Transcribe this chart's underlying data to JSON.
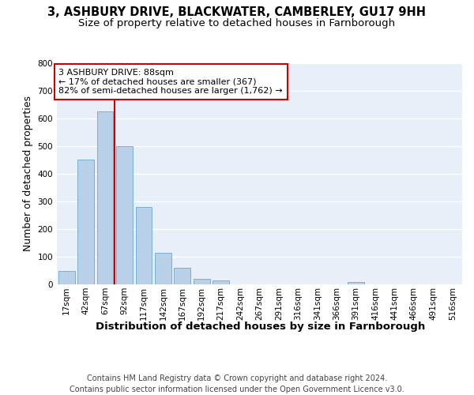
{
  "title_line1": "3, ASHBURY DRIVE, BLACKWATER, CAMBERLEY, GU17 9HH",
  "title_line2": "Size of property relative to detached houses in Farnborough",
  "xlabel": "Distribution of detached houses by size in Farnborough",
  "ylabel": "Number of detached properties",
  "footer": "Contains HM Land Registry data © Crown copyright and database right 2024.\nContains public sector information licensed under the Open Government Licence v3.0.",
  "bin_labels": [
    "17sqm",
    "42sqm",
    "67sqm",
    "92sqm",
    "117sqm",
    "142sqm",
    "167sqm",
    "192sqm",
    "217sqm",
    "242sqm",
    "267sqm",
    "291sqm",
    "316sqm",
    "341sqm",
    "366sqm",
    "391sqm",
    "416sqm",
    "441sqm",
    "466sqm",
    "491sqm",
    "516sqm"
  ],
  "bar_values": [
    50,
    450,
    625,
    500,
    280,
    115,
    60,
    20,
    15,
    0,
    0,
    0,
    0,
    0,
    0,
    10,
    0,
    0,
    0,
    0,
    0
  ],
  "bar_color": "#b8d0e8",
  "bar_edge_color": "#7aafd4",
  "background_color": "#e8eff8",
  "grid_color": "#ffffff",
  "vline_color": "#cc0000",
  "annotation_title": "3 ASHBURY DRIVE: 88sqm",
  "annotation_line1": "← 17% of detached houses are smaller (367)",
  "annotation_line2": "82% of semi-detached houses are larger (1,762) →",
  "annotation_box_color": "white",
  "annotation_box_edge": "#cc0000",
  "ylim": [
    0,
    800
  ],
  "yticks": [
    0,
    100,
    200,
    300,
    400,
    500,
    600,
    700,
    800
  ],
  "title_fontsize": 10.5,
  "subtitle_fontsize": 9.5,
  "ylabel_fontsize": 9,
  "xlabel_fontsize": 9.5,
  "tick_fontsize": 7.5,
  "annot_fontsize": 8,
  "footer_fontsize": 7
}
